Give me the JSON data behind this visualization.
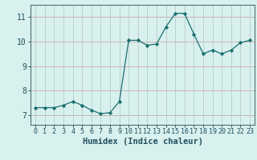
{
  "xlabel": "Humidex (Indice chaleur)",
  "x": [
    0,
    1,
    2,
    3,
    4,
    5,
    6,
    7,
    8,
    9,
    10,
    11,
    12,
    13,
    14,
    15,
    16,
    17,
    18,
    19,
    20,
    21,
    22,
    23
  ],
  "y": [
    7.3,
    7.3,
    7.3,
    7.4,
    7.55,
    7.4,
    7.2,
    7.05,
    7.1,
    7.55,
    10.05,
    10.05,
    9.85,
    9.9,
    10.6,
    11.15,
    11.15,
    10.3,
    9.5,
    9.65,
    9.5,
    9.65,
    9.95,
    10.05
  ],
  "xlim": [
    -0.5,
    23.5
  ],
  "ylim": [
    6.6,
    11.5
  ],
  "yticks": [
    7,
    8,
    9,
    10,
    11
  ],
  "xticks": [
    0,
    1,
    2,
    3,
    4,
    5,
    6,
    7,
    8,
    9,
    10,
    11,
    12,
    13,
    14,
    15,
    16,
    17,
    18,
    19,
    20,
    21,
    22,
    23
  ],
  "line_color": "#1a7070",
  "marker_color": "#1a7070",
  "bg_color": "#d8f0ee",
  "grid_color_h": "#c8a8a8",
  "grid_color_v": "#b8ccc8",
  "axis_color": "#507070",
  "label_color": "#205060",
  "xlabel_fontsize": 7.5,
  "tick_fontsize_y": 7,
  "tick_fontsize_x": 6
}
